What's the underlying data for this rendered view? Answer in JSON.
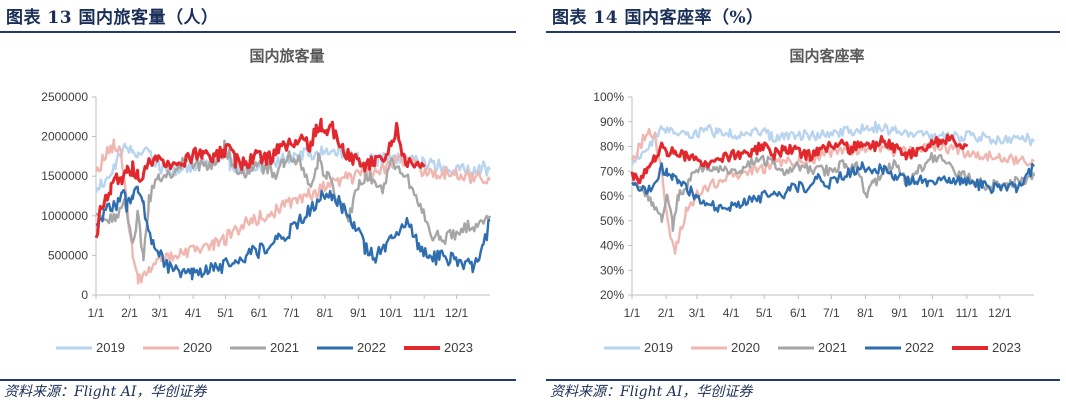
{
  "figures": [
    {
      "header": "图表 13  国内旅客量（人）",
      "source": "资料来源：Flight AI，华创证券"
    },
    {
      "header": "图表 14  国内客座率（%）",
      "source": "资料来源：Flight AI，华创证券"
    }
  ],
  "colors": {
    "2019": "#b8d4ee",
    "2020": "#f0b7b0",
    "2021": "#a6a6a6",
    "2022": "#2e6db0",
    "2023": "#e2272d",
    "axis": "#bfbfbf",
    "header_rule": "#1f3c6e"
  },
  "chart_data": [
    {
      "type": "line",
      "title": "国内旅客量",
      "x_tick_labels": [
        "1/1",
        "2/1",
        "3/1",
        "4/1",
        "5/1",
        "6/1",
        "7/1",
        "8/1",
        "9/1",
        "10/1",
        "11/1",
        "12/1"
      ],
      "y_tick_labels": [
        "0",
        "500000",
        "1000000",
        "1500000",
        "2000000",
        "2500000"
      ],
      "ylim": [
        0,
        2500000
      ],
      "xlim_day_of_year": [
        1,
        366
      ],
      "grid": false,
      "legend": "bottom",
      "x_unit": "day of year (1/1 = day 1)",
      "series": [
        {
          "name": "2019",
          "x": [
            1,
            10,
            20,
            30,
            35,
            40,
            50,
            60,
            75,
            90,
            105,
            120,
            125,
            135,
            150,
            165,
            180,
            195,
            210,
            220,
            230,
            245,
            260,
            275,
            290,
            305,
            320,
            335,
            350,
            360,
            366
          ],
          "y": [
            1350000,
            1480000,
            1700000,
            1900000,
            1850000,
            1820000,
            1780000,
            1600000,
            1550000,
            1650000,
            1700000,
            1800000,
            1650000,
            1600000,
            1620000,
            1680000,
            1720000,
            1780000,
            1800000,
            1820000,
            1800000,
            1700000,
            1680000,
            1750000,
            1720000,
            1650000,
            1620000,
            1580000,
            1550000,
            1600000,
            1580000
          ]
        },
        {
          "name": "2020",
          "x": [
            1,
            10,
            18,
            24,
            30,
            35,
            40,
            50,
            60,
            75,
            90,
            100,
            110,
            120,
            130,
            140,
            150,
            165,
            180,
            195,
            210,
            225,
            240,
            255,
            270,
            280,
            290,
            300,
            315,
            330,
            345,
            360,
            366
          ],
          "y": [
            1500000,
            1780000,
            1900000,
            1750000,
            1100000,
            500000,
            200000,
            300000,
            450000,
            500000,
            550000,
            580000,
            620000,
            700000,
            800000,
            900000,
            950000,
            1050000,
            1150000,
            1250000,
            1350000,
            1450000,
            1500000,
            1550000,
            1600000,
            1700000,
            1650000,
            1600000,
            1550000,
            1550000,
            1500000,
            1480000,
            1450000
          ]
        },
        {
          "name": "2021",
          "x": [
            1,
            10,
            20,
            28,
            35,
            40,
            45,
            50,
            60,
            75,
            85,
            95,
            105,
            115,
            120,
            125,
            130,
            140,
            150,
            160,
            170,
            175,
            180,
            190,
            200,
            207,
            215,
            225,
            235,
            245,
            255,
            265,
            275,
            280,
            290,
            300,
            310,
            320,
            335,
            350,
            360,
            366
          ],
          "y": [
            1000000,
            900000,
            1000000,
            1150000,
            600000,
            1100000,
            400000,
            1200000,
            1500000,
            1600000,
            1750000,
            1650000,
            1600000,
            1700000,
            1900000,
            1750000,
            1600000,
            1550000,
            1650000,
            1600000,
            1500000,
            1700000,
            1750000,
            1700000,
            1400000,
            1700000,
            1500000,
            1200000,
            1000000,
            1400000,
            1500000,
            1300000,
            1700000,
            1600000,
            1450000,
            1200000,
            800000,
            700000,
            800000,
            900000,
            850000,
            1000000
          ]
        },
        {
          "name": "2022",
          "x": [
            1,
            10,
            20,
            25,
            30,
            35,
            40,
            45,
            55,
            65,
            75,
            85,
            90,
            100,
            110,
            120,
            130,
            140,
            150,
            160,
            170,
            180,
            190,
            200,
            210,
            215,
            220,
            230,
            240,
            250,
            260,
            270,
            275,
            280,
            290,
            300,
            310,
            320,
            330,
            340,
            350,
            360,
            366
          ],
          "y": [
            950000,
            1050000,
            1150000,
            1350000,
            1100000,
            1250000,
            1300000,
            1100000,
            600000,
            400000,
            300000,
            250000,
            280000,
            300000,
            320000,
            380000,
            450000,
            500000,
            550000,
            600000,
            700000,
            800000,
            950000,
            1100000,
            1250000,
            1300000,
            1250000,
            1100000,
            900000,
            600000,
            500000,
            650000,
            800000,
            750000,
            900000,
            600000,
            450000,
            480000,
            450000,
            400000,
            350000,
            600000,
            950000
          ]
        },
        {
          "name": "2023",
          "x": [
            1,
            5,
            10,
            15,
            20,
            25,
            30,
            35,
            40,
            45,
            50,
            60,
            70,
            80,
            90,
            100,
            110,
            120,
            125,
            130,
            140,
            150,
            160,
            170,
            180,
            190,
            200,
            205,
            210,
            215,
            220,
            225,
            230,
            240,
            250,
            260,
            270,
            275,
            280,
            285,
            290,
            300,
            305
          ],
          "y": [
            650000,
            1050000,
            1200000,
            1350000,
            1500000,
            1450000,
            1550000,
            1600000,
            1500000,
            1550000,
            1650000,
            1700000,
            1650000,
            1650000,
            1750000,
            1800000,
            1750000,
            1800000,
            1850000,
            1700000,
            1650000,
            1750000,
            1700000,
            1850000,
            1900000,
            1950000,
            1900000,
            2100000,
            2150000,
            2050000,
            2100000,
            2000000,
            1850000,
            1700000,
            1650000,
            1700000,
            1750000,
            1900000,
            2100000,
            1750000,
            1650000,
            1700000,
            1650000
          ]
        }
      ]
    },
    {
      "type": "line",
      "title": "国内客座率",
      "x_tick_labels": [
        "1/1",
        "2/1",
        "3/1",
        "4/1",
        "5/1",
        "6/1",
        "7/1",
        "8/1",
        "9/1",
        "10/1",
        "11/1",
        "12/1"
      ],
      "y_tick_labels": [
        "20%",
        "30%",
        "40%",
        "50%",
        "60%",
        "70%",
        "80%",
        "90%",
        "100%"
      ],
      "ylim": [
        20,
        100
      ],
      "xlim_day_of_year": [
        1,
        366
      ],
      "grid": false,
      "legend": "bottom",
      "x_unit": "day of year (1/1 = day 1)",
      "series": [
        {
          "name": "2019",
          "x": [
            1,
            10,
            20,
            30,
            40,
            50,
            60,
            70,
            80,
            90,
            100,
            110,
            120,
            130,
            140,
            150,
            165,
            180,
            195,
            210,
            225,
            240,
            255,
            270,
            285,
            300,
            315,
            330,
            345,
            360,
            366
          ],
          "y": [
            74,
            78,
            83,
            88,
            86,
            84,
            85,
            87,
            85,
            86,
            84,
            85,
            86,
            83,
            84,
            85,
            84,
            85,
            86,
            87,
            88,
            86,
            85,
            85,
            84,
            84,
            84,
            83,
            82,
            83,
            82
          ]
        },
        {
          "name": "2020",
          "x": [
            1,
            8,
            15,
            22,
            28,
            32,
            36,
            40,
            45,
            50,
            55,
            60,
            70,
            80,
            90,
            100,
            110,
            120,
            135,
            150,
            165,
            180,
            195,
            210,
            225,
            240,
            255,
            270,
            285,
            300,
            315,
            330,
            345,
            360,
            366
          ],
          "y": [
            73,
            80,
            86,
            84,
            70,
            55,
            44,
            38,
            46,
            54,
            57,
            60,
            64,
            66,
            68,
            68,
            70,
            71,
            73,
            74,
            75,
            77,
            79,
            79,
            80,
            78,
            78,
            80,
            79,
            78,
            77,
            76,
            75,
            74,
            74
          ]
        },
        {
          "name": "2021",
          "x": [
            1,
            10,
            20,
            28,
            33,
            38,
            43,
            48,
            55,
            65,
            75,
            90,
            105,
            120,
            130,
            140,
            155,
            170,
            185,
            195,
            205,
            210,
            215,
            220,
            230,
            240,
            250,
            260,
            270,
            280,
            295,
            310,
            325,
            340,
            355,
            366
          ],
          "y": [
            65,
            62,
            57,
            50,
            60,
            48,
            60,
            63,
            68,
            72,
            72,
            70,
            72,
            75,
            73,
            70,
            72,
            70,
            71,
            73,
            72,
            65,
            60,
            65,
            70,
            73,
            66,
            70,
            75,
            76,
            70,
            66,
            64,
            65,
            66,
            68
          ]
        },
        {
          "name": "2022",
          "x": [
            1,
            8,
            15,
            22,
            28,
            33,
            38,
            43,
            50,
            60,
            70,
            80,
            90,
            100,
            110,
            120,
            130,
            140,
            150,
            160,
            170,
            180,
            190,
            200,
            210,
            220,
            230,
            240,
            250,
            260,
            270,
            280,
            290,
            300,
            310,
            320,
            330,
            340,
            350,
            360,
            366
          ],
          "y": [
            67,
            64,
            62,
            66,
            71,
            69,
            67,
            65,
            63,
            60,
            57,
            55,
            56,
            57,
            58,
            60,
            62,
            61,
            64,
            63,
            67,
            65,
            68,
            70,
            72,
            70,
            71,
            68,
            66,
            67,
            66,
            67,
            65,
            66,
            65,
            64,
            63,
            64,
            63,
            68,
            72
          ]
        },
        {
          "name": "2023",
          "x": [
            1,
            8,
            15,
            22,
            28,
            33,
            40,
            50,
            60,
            70,
            80,
            90,
            100,
            110,
            120,
            130,
            140,
            150,
            160,
            170,
            180,
            190,
            200,
            210,
            220,
            230,
            240,
            250,
            260,
            270,
            280,
            290,
            300,
            305
          ],
          "y": [
            68,
            66,
            70,
            75,
            80,
            78,
            79,
            76,
            74,
            73,
            75,
            76,
            77,
            78,
            80,
            77,
            79,
            78,
            76,
            78,
            80,
            81,
            79,
            82,
            80,
            83,
            79,
            77,
            78,
            80,
            82,
            83,
            81,
            81
          ]
        }
      ]
    }
  ]
}
